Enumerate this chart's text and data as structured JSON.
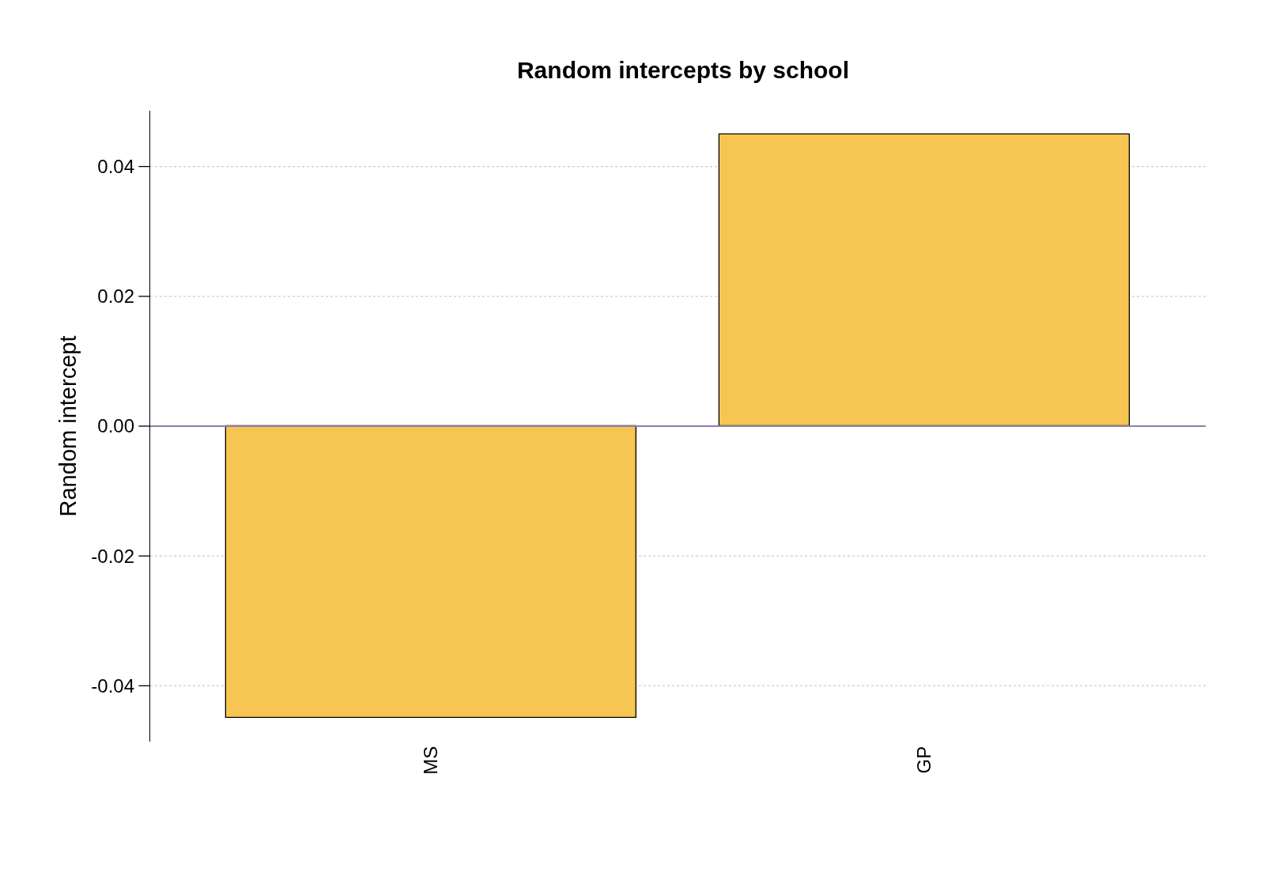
{
  "chart_data": {
    "type": "bar",
    "title": "Random intercepts by school",
    "ylabel": "Random intercept",
    "categories": [
      "MS",
      "GP"
    ],
    "values": [
      -0.045,
      0.045
    ],
    "color": "#f7c652",
    "ylim": [
      -0.0486,
      0.0486
    ],
    "yticks": [
      {
        "value": -0.04,
        "label": "-0.04"
      },
      {
        "value": -0.02,
        "label": "-0.02"
      },
      {
        "value": 0,
        "label": "0.00"
      },
      {
        "value": 0.02,
        "label": "0.02"
      },
      {
        "value": 0.04,
        "label": "0.04"
      }
    ],
    "grid": "y",
    "ref_lines": [
      {
        "axis": "y",
        "value": 0,
        "color": "#8e7cab",
        "line_style": "solid"
      }
    ]
  }
}
